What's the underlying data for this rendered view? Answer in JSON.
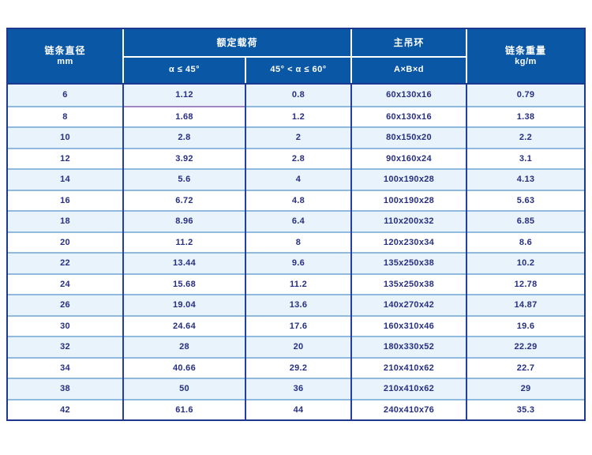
{
  "table": {
    "header": {
      "col_diameter": {
        "title": "链条直径",
        "unit": "mm"
      },
      "col_rated_load": {
        "title": "额定载荷",
        "sub_45": "α ≤ 45°",
        "sub_60": "45° < α ≤ 60°"
      },
      "col_main_ring": {
        "title": "主吊环",
        "sub": "A×B×d"
      },
      "col_weight": {
        "title": "链条重量",
        "unit": "kg/m"
      }
    },
    "rows": [
      [
        "6",
        "1.12",
        "0.8",
        "60x130x16",
        "0.79"
      ],
      [
        "8",
        "1.68",
        "1.2",
        "60x130x16",
        "1.38"
      ],
      [
        "10",
        "2.8",
        "2",
        "80x150x20",
        "2.2"
      ],
      [
        "12",
        "3.92",
        "2.8",
        "90x160x24",
        "3.1"
      ],
      [
        "14",
        "5.6",
        "4",
        "100x190x28",
        "4.13"
      ],
      [
        "16",
        "6.72",
        "4.8",
        "100x190x28",
        "5.63"
      ],
      [
        "18",
        "8.96",
        "6.4",
        "110x200x32",
        "6.85"
      ],
      [
        "20",
        "11.2",
        "8",
        "120x230x34",
        "8.6"
      ],
      [
        "22",
        "13.44",
        "9.6",
        "135x250x38",
        "10.2"
      ],
      [
        "24",
        "15.68",
        "11.2",
        "135x250x38",
        "12.78"
      ],
      [
        "26",
        "19.04",
        "13.6",
        "140x270x42",
        "14.87"
      ],
      [
        "30",
        "24.64",
        "17.6",
        "160x310x46",
        "19.6"
      ],
      [
        "32",
        "28",
        "20",
        "180x330x52",
        "22.29"
      ],
      [
        "34",
        "40.66",
        "29.2",
        "210x410x62",
        "22.7"
      ],
      [
        "38",
        "50",
        "36",
        "210x410x62",
        "29"
      ],
      [
        "42",
        "61.6",
        "44",
        "240x410x76",
        "35.3"
      ]
    ],
    "column_names": [
      "chain-diameter-cell",
      "rated-load-45-cell",
      "rated-load-60-cell",
      "main-ring-size-cell",
      "chain-weight-cell"
    ]
  },
  "colors": {
    "header_blue": "#0a57a6",
    "outer_border_navy": "#1c3890",
    "divider_navy": "#2140a0",
    "row_light_blue": "#e8f3fb",
    "row_separator_blue": "#8fbadd",
    "artifact_underline_purple": "#9e87c4",
    "data_text_navy": "#272f82"
  }
}
